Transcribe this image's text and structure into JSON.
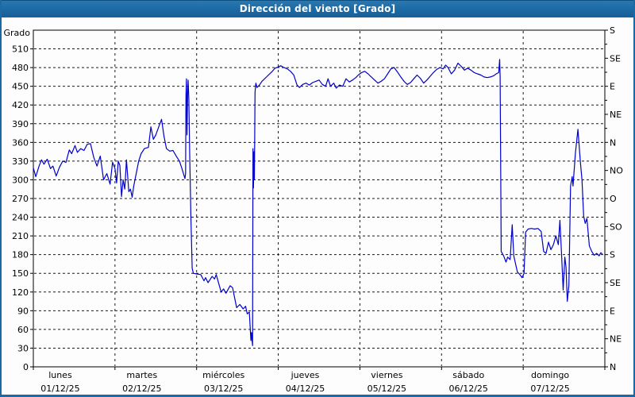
{
  "title": "Dirección del viento [Grado]",
  "colors": {
    "titlebar": "#1e6ba5",
    "window_border": "#1b6aa5",
    "series_line": "#0000cc",
    "grid": "#1a1a1a",
    "axis": "#000000",
    "text": "#000000",
    "plot_background": "#fdfdfd"
  },
  "chart_data": {
    "type": "line",
    "title": "Dirección del viento [Grado]",
    "ylabel": "Grado",
    "xlabel": "",
    "grid": true,
    "legend_position": "none",
    "x_unit": "days since Monday 00:00",
    "x_range": [
      0,
      7
    ],
    "ylim": [
      0,
      540
    ],
    "y_tick_step_left": 30,
    "y_left_tick_labels": [
      "0",
      "30",
      "60",
      "90",
      "120",
      "150",
      "180",
      "210",
      "240",
      "270",
      "300",
      "330",
      "360",
      "390",
      "420",
      "450",
      "480",
      "510"
    ],
    "right_axis": {
      "tick_step": 45,
      "minor_tick_step": 22.5,
      "labels_top_to_bottom": [
        "S",
        "SE",
        "E",
        "NE",
        "N",
        "NO",
        "O",
        "SO",
        "S",
        "SE",
        "E",
        "NE",
        "N"
      ],
      "label_values": [
        540,
        495,
        450,
        405,
        360,
        315,
        270,
        225,
        180,
        135,
        90,
        45,
        0
      ]
    },
    "days": [
      {
        "name": "lunes",
        "date": "01/12/25"
      },
      {
        "name": "martes",
        "date": "02/12/25"
      },
      {
        "name": "miércoles",
        "date": "03/12/25"
      },
      {
        "name": "jueves",
        "date": "04/12/25"
      },
      {
        "name": "viernes",
        "date": "05/12/25"
      },
      {
        "name": "sábado",
        "date": "06/12/25"
      },
      {
        "name": "domingo",
        "date": "07/12/25"
      }
    ],
    "series": [
      {
        "name": "Dirección del viento (Grado)",
        "color": "#0000cc",
        "points": [
          [
            0.0,
            319
          ],
          [
            0.03,
            305
          ],
          [
            0.07,
            322
          ],
          [
            0.1,
            332
          ],
          [
            0.13,
            325
          ],
          [
            0.17,
            333
          ],
          [
            0.21,
            318
          ],
          [
            0.24,
            322
          ],
          [
            0.28,
            306
          ],
          [
            0.32,
            320
          ],
          [
            0.36,
            330
          ],
          [
            0.4,
            328
          ],
          [
            0.44,
            348
          ],
          [
            0.47,
            342
          ],
          [
            0.51,
            355
          ],
          [
            0.54,
            344
          ],
          [
            0.58,
            350
          ],
          [
            0.62,
            347
          ],
          [
            0.66,
            357
          ],
          [
            0.7,
            358
          ],
          [
            0.74,
            336
          ],
          [
            0.78,
            322
          ],
          [
            0.82,
            338
          ],
          [
            0.86,
            300
          ],
          [
            0.9,
            310
          ],
          [
            0.94,
            293
          ],
          [
            0.97,
            328
          ],
          [
            1.0,
            318
          ],
          [
            1.02,
            295
          ],
          [
            1.04,
            330
          ],
          [
            1.06,
            323
          ],
          [
            1.08,
            273
          ],
          [
            1.1,
            300
          ],
          [
            1.12,
            285
          ],
          [
            1.14,
            332
          ],
          [
            1.17,
            281
          ],
          [
            1.19,
            285
          ],
          [
            1.21,
            272
          ],
          [
            1.23,
            290
          ],
          [
            1.26,
            310
          ],
          [
            1.29,
            330
          ],
          [
            1.32,
            342
          ],
          [
            1.36,
            350
          ],
          [
            1.41,
            352
          ],
          [
            1.44,
            385
          ],
          [
            1.47,
            365
          ],
          [
            1.5,
            372
          ],
          [
            1.55,
            390
          ],
          [
            1.57,
            397
          ],
          [
            1.6,
            370
          ],
          [
            1.63,
            350
          ],
          [
            1.67,
            346
          ],
          [
            1.71,
            347
          ],
          [
            1.75,
            338
          ],
          [
            1.79,
            330
          ],
          [
            1.82,
            318
          ],
          [
            1.857,
            302
          ],
          [
            1.865,
            310
          ],
          [
            1.87,
            435
          ],
          [
            1.875,
            462
          ],
          [
            1.882,
            372
          ],
          [
            1.89,
            440
          ],
          [
            1.896,
            460
          ],
          [
            1.905,
            430
          ],
          [
            1.915,
            340
          ],
          [
            1.93,
            240
          ],
          [
            1.945,
            158
          ],
          [
            1.96,
            150
          ],
          [
            2.0,
            149
          ],
          [
            2.05,
            148
          ],
          [
            2.09,
            138
          ],
          [
            2.11,
            143
          ],
          [
            2.14,
            135
          ],
          [
            2.19,
            145
          ],
          [
            2.22,
            141
          ],
          [
            2.24,
            148
          ],
          [
            2.3,
            120
          ],
          [
            2.33,
            125
          ],
          [
            2.36,
            118
          ],
          [
            2.41,
            130
          ],
          [
            2.44,
            127
          ],
          [
            2.49,
            95
          ],
          [
            2.53,
            100
          ],
          [
            2.57,
            93
          ],
          [
            2.6,
            97
          ],
          [
            2.62,
            85
          ],
          [
            2.645,
            88
          ],
          [
            2.665,
            42
          ],
          [
            2.672,
            55
          ],
          [
            2.685,
            34
          ],
          [
            2.69,
            350
          ],
          [
            2.696,
            287
          ],
          [
            2.703,
            345
          ],
          [
            2.708,
            300
          ],
          [
            2.715,
            440
          ],
          [
            2.725,
            455
          ],
          [
            2.74,
            448
          ],
          [
            2.77,
            452
          ],
          [
            2.8,
            458
          ],
          [
            2.84,
            463
          ],
          [
            2.88,
            468
          ],
          [
            2.92,
            473
          ],
          [
            2.96,
            479
          ],
          [
            3.0,
            481
          ],
          [
            3.03,
            483
          ],
          [
            3.07,
            480
          ],
          [
            3.11,
            478
          ],
          [
            3.15,
            474
          ],
          [
            3.19,
            468
          ],
          [
            3.23,
            452
          ],
          [
            3.26,
            448
          ],
          [
            3.3,
            453
          ],
          [
            3.34,
            455
          ],
          [
            3.38,
            452
          ],
          [
            3.42,
            456
          ],
          [
            3.46,
            458
          ],
          [
            3.5,
            460
          ],
          [
            3.54,
            453
          ],
          [
            3.58,
            450
          ],
          [
            3.61,
            462
          ],
          [
            3.64,
            450
          ],
          [
            3.68,
            455
          ],
          [
            3.71,
            447
          ],
          [
            3.75,
            452
          ],
          [
            3.79,
            450
          ],
          [
            3.83,
            462
          ],
          [
            3.87,
            457
          ],
          [
            3.91,
            460
          ],
          [
            3.95,
            464
          ],
          [
            3.98,
            468
          ],
          [
            4.02,
            472
          ],
          [
            4.06,
            474
          ],
          [
            4.1,
            470
          ],
          [
            4.14,
            465
          ],
          [
            4.18,
            460
          ],
          [
            4.22,
            455
          ],
          [
            4.26,
            458
          ],
          [
            4.3,
            462
          ],
          [
            4.34,
            470
          ],
          [
            4.38,
            478
          ],
          [
            4.42,
            480
          ],
          [
            4.46,
            473
          ],
          [
            4.5,
            465
          ],
          [
            4.54,
            458
          ],
          [
            4.58,
            453
          ],
          [
            4.62,
            456
          ],
          [
            4.66,
            462
          ],
          [
            4.7,
            468
          ],
          [
            4.74,
            463
          ],
          [
            4.78,
            455
          ],
          [
            4.82,
            460
          ],
          [
            4.86,
            466
          ],
          [
            4.9,
            472
          ],
          [
            4.94,
            477
          ],
          [
            4.98,
            480
          ],
          [
            5.02,
            478
          ],
          [
            5.05,
            484
          ],
          [
            5.08,
            480
          ],
          [
            5.12,
            470
          ],
          [
            5.16,
            476
          ],
          [
            5.2,
            487
          ],
          [
            5.24,
            482
          ],
          [
            5.28,
            476
          ],
          [
            5.32,
            479
          ],
          [
            5.36,
            476
          ],
          [
            5.4,
            472
          ],
          [
            5.44,
            470
          ],
          [
            5.48,
            468
          ],
          [
            5.52,
            465
          ],
          [
            5.56,
            464
          ],
          [
            5.6,
            465
          ],
          [
            5.64,
            467
          ],
          [
            5.67,
            470
          ],
          [
            5.7,
            472
          ],
          [
            5.712,
            493
          ],
          [
            5.718,
            465
          ],
          [
            5.725,
            300
          ],
          [
            5.73,
            185
          ],
          [
            5.76,
            178
          ],
          [
            5.79,
            168
          ],
          [
            5.81,
            176
          ],
          [
            5.84,
            172
          ],
          [
            5.865,
            228
          ],
          [
            5.885,
            178
          ],
          [
            5.91,
            163
          ],
          [
            5.93,
            152
          ],
          [
            5.96,
            148
          ],
          [
            5.985,
            143
          ],
          [
            6.01,
            150
          ],
          [
            6.03,
            216
          ],
          [
            6.06,
            221
          ],
          [
            6.1,
            222
          ],
          [
            6.14,
            221
          ],
          [
            6.18,
            222
          ],
          [
            6.22,
            217
          ],
          [
            6.25,
            185
          ],
          [
            6.28,
            182
          ],
          [
            6.31,
            200
          ],
          [
            6.34,
            188
          ],
          [
            6.37,
            196
          ],
          [
            6.4,
            210
          ],
          [
            6.43,
            196
          ],
          [
            6.45,
            235
          ],
          [
            6.47,
            180
          ],
          [
            6.49,
            123
          ],
          [
            6.51,
            176
          ],
          [
            6.525,
            160
          ],
          [
            6.54,
            105
          ],
          [
            6.56,
            130
          ],
          [
            6.58,
            290
          ],
          [
            6.6,
            305
          ],
          [
            6.61,
            290
          ],
          [
            6.64,
            344
          ],
          [
            6.67,
            381
          ],
          [
            6.7,
            330
          ],
          [
            6.72,
            300
          ],
          [
            6.74,
            242
          ],
          [
            6.76,
            230
          ],
          [
            6.78,
            238
          ],
          [
            6.81,
            194
          ],
          [
            6.84,
            185
          ],
          [
            6.87,
            179
          ],
          [
            6.9,
            182
          ],
          [
            6.93,
            178
          ],
          [
            6.95,
            183
          ],
          [
            6.97,
            181
          ]
        ]
      }
    ]
  }
}
